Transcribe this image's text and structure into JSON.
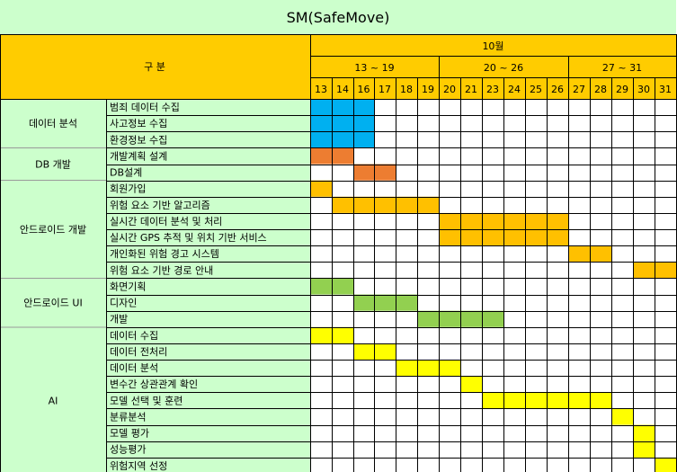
{
  "title": "SM(SafeMove)",
  "header": {
    "category_label": "구  분",
    "month": "10월",
    "weeks": [
      "13 ~ 19",
      "20 ~ 26",
      "27 ~ 31"
    ]
  },
  "chart_data": {
    "type": "gantt",
    "title": "SM(SafeMove)",
    "month": "10월",
    "days": [
      "13",
      "14",
      "16",
      "17",
      "18",
      "19",
      "20",
      "21",
      "23",
      "24",
      "25",
      "26",
      "27",
      "28",
      "29",
      "30",
      "31"
    ],
    "groups": [
      {
        "name": "데이터 분석",
        "color": "#00b0f0",
        "tasks": [
          {
            "name": "범죄 데이터 수집",
            "start": "13",
            "end": "16"
          },
          {
            "name": "사고정보 수집",
            "start": "13",
            "end": "16"
          },
          {
            "name": "환경정보 수집",
            "start": "13",
            "end": "16"
          }
        ]
      },
      {
        "name": "DB 개발",
        "color": "#ed7d31",
        "tasks": [
          {
            "name": "개발계획 설계",
            "start": "13",
            "end": "14"
          },
          {
            "name": "DB설계",
            "start": "16",
            "end": "17"
          }
        ]
      },
      {
        "name": "안드로이드 개발",
        "color": "#ffc000",
        "tasks": [
          {
            "name": "회원가입",
            "start": "13",
            "end": "13"
          },
          {
            "name": "위험 요소 기반 알고리즘",
            "start": "14",
            "end": "19"
          },
          {
            "name": "실시간 데이터 분석 및 처리",
            "start": "20",
            "end": "26"
          },
          {
            "name": "실시간 GPS 추적 및 위치 기반 서비스",
            "start": "20",
            "end": "26"
          },
          {
            "name": "개인화된 위험 경고 시스템",
            "start": "27",
            "end": "28"
          },
          {
            "name": "위험 요소 기반 경로 안내",
            "start": "30",
            "end": "31"
          }
        ]
      },
      {
        "name": "안드로이드 UI",
        "color": "#92d050",
        "tasks": [
          {
            "name": "화면기획",
            "start": "13",
            "end": "14"
          },
          {
            "name": "디자인",
            "start": "16",
            "end": "18"
          },
          {
            "name": "개발",
            "start": "19",
            "end": "23"
          }
        ]
      },
      {
        "name": "AI",
        "color": "#ffff00",
        "tasks": [
          {
            "name": "데이터 수집",
            "start": "13",
            "end": "14"
          },
          {
            "name": "데이터 전처리",
            "start": "16",
            "end": "17"
          },
          {
            "name": "데이터 분석",
            "start": "18",
            "end": "20"
          },
          {
            "name": "변수간 상관관계 확인",
            "start": "21",
            "end": "21"
          },
          {
            "name": "모델 선택 및 훈련",
            "start": "23",
            "end": "28"
          },
          {
            "name": "분류분석",
            "start": "29",
            "end": "29"
          },
          {
            "name": "모델 평가",
            "start": "30",
            "end": "30"
          },
          {
            "name": "성능평가",
            "start": "30",
            "end": "30"
          },
          {
            "name": "위험지역 선정",
            "start": "31",
            "end": "31"
          }
        ]
      }
    ]
  },
  "colors": {
    "title_bg": "#ccffcc",
    "header_bg": "#ffcc00",
    "grid": "#000000",
    "separator": "#9a9a9a"
  }
}
